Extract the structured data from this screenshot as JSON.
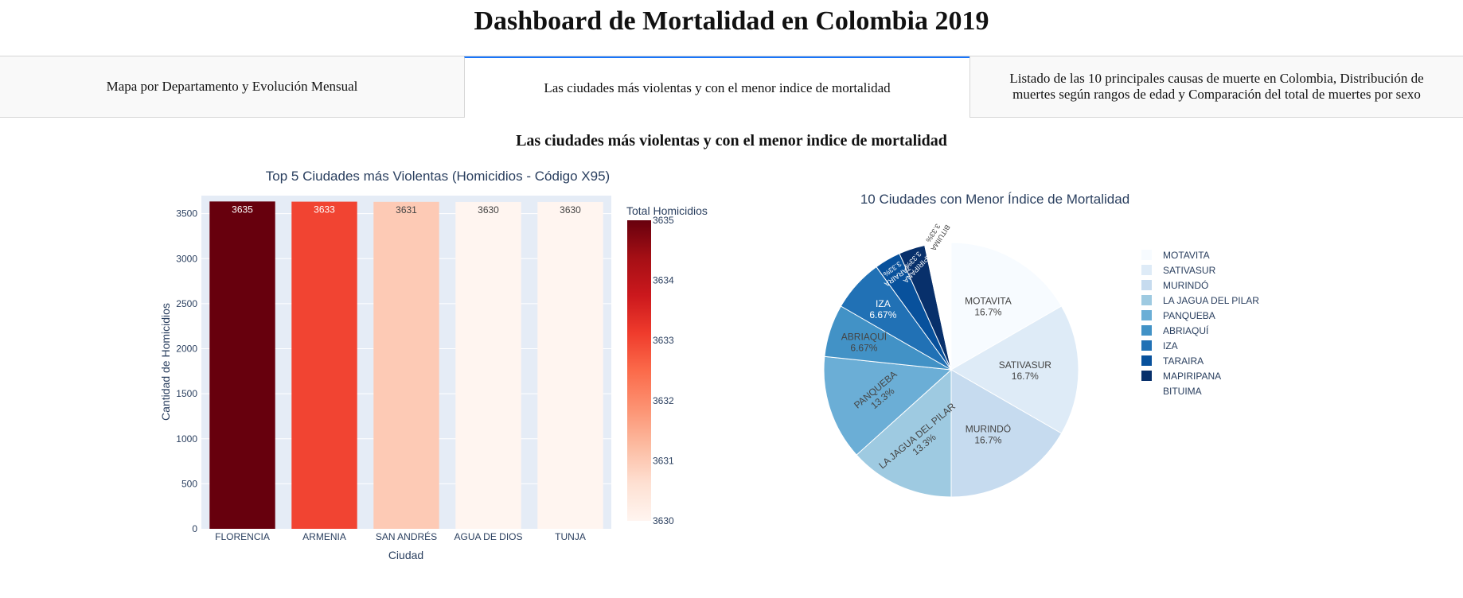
{
  "header": {
    "title": "Dashboard de Mortalidad en Colombia 2019"
  },
  "tabs": [
    {
      "label": "Mapa por Departamento y Evolución Mensual",
      "active": false
    },
    {
      "label": "Las ciudades más violentas y con el menor indice de mortalidad",
      "active": true
    },
    {
      "label": "Listado de las 10 principales causas de muerte en Colombia, Distribución de muertes según rangos de edad y Comparación del total de muertes por sexo",
      "active": false
    }
  ],
  "section": {
    "title": "Las ciudades más violentas y con el menor indice de mortalidad"
  },
  "chart_data": [
    {
      "type": "bar",
      "title": "Top 5 Ciudades más Violentas (Homicidios - Código X95)",
      "xlabel": "Ciudad",
      "ylabel": "Cantidad de Homicidios",
      "categories": [
        "FLORENCIA",
        "ARMENIA",
        "SAN ANDRÉS",
        "AGUA DE DIOS",
        "TUNJA"
      ],
      "values": [
        3635,
        3633,
        3631,
        3630,
        3630
      ],
      "ylim": [
        0,
        3700
      ],
      "yticks": [
        0,
        500,
        1000,
        1500,
        2000,
        2500,
        3000,
        3500
      ],
      "grid": true,
      "colorbar": {
        "title": "Total Homicidios",
        "min": 3630,
        "max": 3635,
        "ticks": [
          3635,
          3634,
          3633,
          3632,
          3631,
          3630
        ],
        "colorscale": "Reds"
      }
    },
    {
      "type": "pie",
      "title": "10 Ciudades con Menor Índice de Mortalidad",
      "labels": [
        "MOTAVITA",
        "SATIVASUR",
        "MURINDÓ",
        "LA JAGUA DEL PILAR",
        "PANQUEBA",
        "ABRIAQUÍ",
        "IZA",
        "TARAIRA",
        "MAPIRIPANA",
        "BITUIMA"
      ],
      "values": [
        5,
        5,
        5,
        4,
        4,
        2,
        2,
        1,
        1,
        1
      ],
      "percent_labels": [
        "16.7%",
        "16.7%",
        "16.7%",
        "13.3%",
        "13.3%",
        "6.67%",
        "6.67%",
        "3.33%",
        "3.33%",
        "3.33%"
      ],
      "colors": [
        "#f7fbff",
        "#deebf7",
        "#c6dbef",
        "#9ecae1",
        "#6baed6",
        "#4292c6",
        "#2171b5",
        "#08519c",
        "#08306b",
        "#ffffff"
      ],
      "legend": "right"
    }
  ]
}
